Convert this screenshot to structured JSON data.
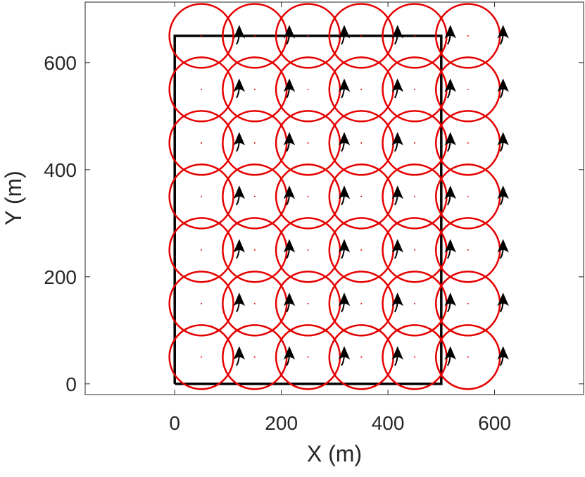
{
  "chart_data": {
    "type": "coverage",
    "xlabel": "X (m)",
    "ylabel": "Y (m)",
    "xlim": [
      -168,
      767
    ],
    "ylim": [
      -20,
      713
    ],
    "xticks": [
      0,
      200,
      400,
      600
    ],
    "yticks": [
      0,
      200,
      400,
      600
    ],
    "boundary": {
      "color": "#000000",
      "x": [
        0,
        500,
        500,
        0,
        0
      ],
      "y": [
        0,
        0,
        650,
        650,
        0
      ]
    },
    "circles": {
      "color": "#e60000",
      "radius": 60,
      "x": [
        50,
        150,
        250,
        350,
        450,
        550,
        50,
        150,
        250,
        350,
        450,
        550,
        50,
        150,
        250,
        350,
        450,
        550,
        50,
        150,
        250,
        350,
        450,
        550,
        50,
        150,
        250,
        350,
        450,
        550,
        50,
        150,
        250,
        350,
        450,
        550,
        50,
        150,
        250,
        350,
        450,
        550
      ],
      "y": [
        50,
        50,
        50,
        50,
        50,
        50,
        150,
        150,
        150,
        150,
        150,
        150,
        250,
        250,
        250,
        250,
        250,
        250,
        350,
        350,
        350,
        350,
        350,
        350,
        450,
        450,
        450,
        450,
        450,
        450,
        550,
        550,
        550,
        550,
        550,
        550,
        650,
        650,
        650,
        650,
        650,
        650
      ]
    },
    "arrows": {
      "color": "#000000",
      "x": [
        121,
        215,
        318,
        418,
        517,
        616,
        121,
        215,
        318,
        418,
        517,
        616,
        121,
        215,
        318,
        418,
        517,
        616,
        121,
        215,
        318,
        418,
        517,
        616,
        121,
        215,
        318,
        418,
        517,
        616,
        121,
        215,
        318,
        418,
        517,
        616,
        121,
        215,
        318,
        418,
        517,
        616
      ],
      "y": [
        50,
        50,
        50,
        50,
        50,
        50,
        150,
        150,
        150,
        150,
        150,
        150,
        250,
        250,
        250,
        250,
        250,
        250,
        350,
        350,
        350,
        350,
        350,
        350,
        450,
        450,
        450,
        450,
        450,
        450,
        550,
        550,
        550,
        550,
        550,
        550,
        650,
        650,
        650,
        650,
        650,
        650
      ]
    }
  }
}
